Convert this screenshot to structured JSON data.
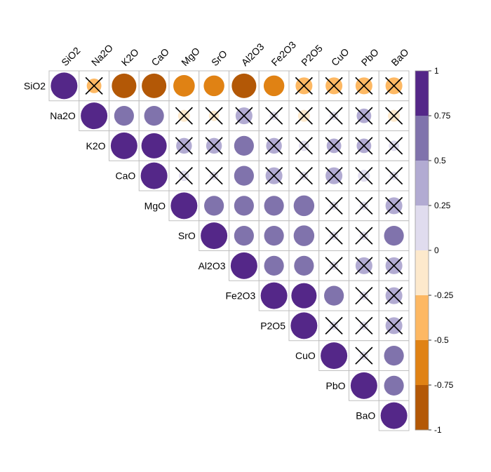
{
  "chart_data": {
    "type": "heatmap",
    "title": "",
    "variables": [
      "SiO2",
      "Na2O",
      "K2O",
      "CaO",
      "MgO",
      "SrO",
      "Al2O3",
      "Fe2O3",
      "P2O5",
      "CuO",
      "PbO",
      "BaO"
    ],
    "matrix_upper": [
      [
        1,
        -0.3,
        -0.85,
        -0.85,
        -0.65,
        -0.6,
        -0.85,
        -0.6,
        -0.4,
        -0.4,
        -0.4,
        -0.4
      ],
      [
        null,
        1,
        0.55,
        0.55,
        -0.2,
        -0.15,
        0.4,
        0.1,
        -0.2,
        0.1,
        0.3,
        -0.2
      ],
      [
        null,
        null,
        1,
        0.9,
        0.35,
        0.35,
        0.55,
        0.35,
        0.15,
        0.3,
        0.3,
        0.15
      ],
      [
        null,
        null,
        null,
        1,
        0.15,
        0.1,
        0.55,
        0.4,
        0.1,
        0.4,
        0.2,
        0.1
      ],
      [
        null,
        null,
        null,
        null,
        1,
        0.55,
        0.55,
        0.55,
        0.6,
        0.1,
        0.1,
        0.4
      ],
      [
        null,
        null,
        null,
        null,
        null,
        1,
        0.55,
        0.55,
        0.6,
        0.1,
        0.1,
        0.55
      ],
      [
        null,
        null,
        null,
        null,
        null,
        null,
        1,
        0.55,
        0.55,
        0.1,
        0.4,
        0.4
      ],
      [
        null,
        null,
        null,
        null,
        null,
        null,
        null,
        1,
        0.9,
        0.55,
        0.1,
        0.4
      ],
      [
        null,
        null,
        null,
        null,
        null,
        null,
        null,
        null,
        1,
        0.1,
        0.1,
        0.4
      ],
      [
        null,
        null,
        null,
        null,
        null,
        null,
        null,
        null,
        null,
        1,
        0.1,
        0.55
      ],
      [
        null,
        null,
        null,
        null,
        null,
        null,
        null,
        null,
        null,
        null,
        1,
        0.55
      ],
      [
        null,
        null,
        null,
        null,
        null,
        null,
        null,
        null,
        null,
        null,
        null,
        1
      ]
    ],
    "not_significant": [
      [
        0,
        1
      ],
      [
        0,
        8
      ],
      [
        0,
        9
      ],
      [
        0,
        10
      ],
      [
        0,
        11
      ],
      [
        1,
        4
      ],
      [
        1,
        5
      ],
      [
        1,
        6
      ],
      [
        1,
        7
      ],
      [
        1,
        8
      ],
      [
        1,
        9
      ],
      [
        1,
        10
      ],
      [
        1,
        11
      ],
      [
        2,
        4
      ],
      [
        2,
        5
      ],
      [
        2,
        7
      ],
      [
        2,
        8
      ],
      [
        2,
        9
      ],
      [
        2,
        10
      ],
      [
        2,
        11
      ],
      [
        3,
        4
      ],
      [
        3,
        5
      ],
      [
        3,
        7
      ],
      [
        3,
        8
      ],
      [
        3,
        9
      ],
      [
        3,
        10
      ],
      [
        3,
        11
      ],
      [
        4,
        9
      ],
      [
        4,
        10
      ],
      [
        4,
        11
      ],
      [
        5,
        9
      ],
      [
        5,
        10
      ],
      [
        6,
        9
      ],
      [
        6,
        10
      ],
      [
        6,
        11
      ],
      [
        7,
        10
      ],
      [
        7,
        11
      ],
      [
        8,
        9
      ],
      [
        8,
        10
      ],
      [
        8,
        11
      ],
      [
        9,
        10
      ]
    ],
    "colorbar": {
      "range": [
        -1,
        1
      ],
      "tick_labels": [
        "1",
        "0.75",
        "0.5",
        "0.25",
        "0",
        "-0.25",
        "-0.5",
        "-0.75",
        "-1"
      ],
      "bins": [
        "#542788",
        "#8073ac",
        "#b2abd2",
        "#e0dcee",
        "#fde9cc",
        "#fdb863",
        "#e08214",
        "#b35806"
      ]
    },
    "colors": {
      "grid": "#bfbfbf",
      "cross": "#000000",
      "positive_full": "#542788",
      "negative_full": "#b35806"
    },
    "grid": true,
    "legend_placement": "right"
  }
}
